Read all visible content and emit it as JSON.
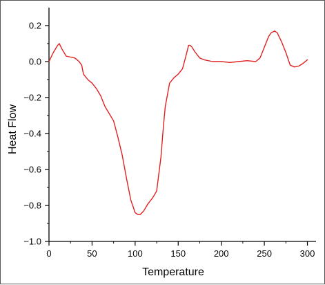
{
  "colors": {
    "series": "#e02020",
    "axis": "#000000",
    "frame": "#555555"
  },
  "chart_data": {
    "type": "line",
    "title": "",
    "xlabel": "Temperature",
    "ylabel": "Heat Flow",
    "xlim": [
      0,
      310
    ],
    "ylim": [
      -1.0,
      0.3
    ],
    "x_ticks": [
      0,
      50,
      100,
      150,
      200,
      250,
      300
    ],
    "x_tick_labels": [
      "0",
      "50",
      "100",
      "150",
      "200",
      "250",
      "300"
    ],
    "y_ticks": [
      0.2,
      0.0,
      -0.2,
      -0.4,
      -0.6,
      -0.8,
      -1.0
    ],
    "y_tick_labels": [
      "0.2",
      "0.0",
      "−0.2",
      "−0.4",
      "−0.6",
      "−0.8",
      "−1.0"
    ],
    "grid": false,
    "legend": false,
    "series": [
      {
        "x": [
          0,
          5,
          10,
          12,
          15,
          20,
          25,
          30,
          35,
          38,
          40,
          45,
          50,
          55,
          60,
          65,
          70,
          75,
          80,
          85,
          90,
          95,
          100,
          103,
          106,
          110,
          115,
          120,
          125,
          130,
          133,
          135,
          140,
          145,
          150,
          155,
          160,
          162,
          164,
          166,
          170,
          175,
          180,
          190,
          200,
          210,
          220,
          230,
          240,
          245,
          250,
          255,
          258,
          262,
          265,
          270,
          275,
          280,
          285,
          290,
          295,
          300
        ],
        "y": [
          0.0,
          0.05,
          0.09,
          0.1,
          0.07,
          0.03,
          0.025,
          0.02,
          0.0,
          -0.02,
          -0.07,
          -0.1,
          -0.12,
          -0.15,
          -0.19,
          -0.25,
          -0.29,
          -0.33,
          -0.42,
          -0.52,
          -0.65,
          -0.77,
          -0.84,
          -0.85,
          -0.85,
          -0.83,
          -0.79,
          -0.76,
          -0.72,
          -0.53,
          -0.35,
          -0.25,
          -0.12,
          -0.09,
          -0.07,
          -0.04,
          0.05,
          0.09,
          0.09,
          0.08,
          0.05,
          0.02,
          0.01,
          0.0,
          0.0,
          -0.005,
          0.0,
          0.005,
          0.0,
          0.02,
          0.08,
          0.14,
          0.16,
          0.17,
          0.16,
          0.11,
          0.05,
          -0.02,
          -0.03,
          -0.025,
          -0.01,
          0.01
        ]
      }
    ]
  }
}
